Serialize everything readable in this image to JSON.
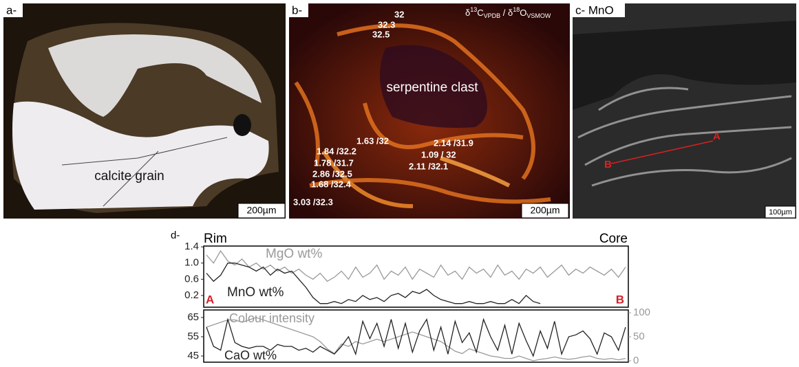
{
  "panels": {
    "a": {
      "label": "a-",
      "caption": "calcite grain",
      "scale": "200µm"
    },
    "b": {
      "label": "b-",
      "header": [
        "δ",
        "13",
        "C",
        "VPDB",
        " / δ",
        "18",
        "O",
        "VSMOW"
      ],
      "caption": "serpentine clast",
      "scale": "200µm",
      "points": [
        "32",
        "32.3",
        "32.5",
        "1.63 /32",
        "2.14 /31.9",
        "1.84 /32.2",
        "1.09 / 32",
        "1.78 /31.7",
        "2.11 /32.1",
        "2.86 /32.5",
        "1.68 /32.4",
        "3.03 /32.3"
      ]
    },
    "c": {
      "label": "c- MnO",
      "start": "A",
      "end": "B",
      "scale": "100µm"
    },
    "d": {
      "label": "d-"
    }
  },
  "chart_data": [
    {
      "type": "line",
      "annotations": [
        "Rim",
        "Core",
        "A",
        "B"
      ],
      "categories": [
        null,
        null,
        null,
        null,
        null,
        null,
        null,
        null,
        null,
        null,
        null,
        null,
        null,
        null,
        null,
        null,
        null,
        null,
        null,
        null,
        null,
        null,
        null,
        null,
        null,
        null,
        null,
        null,
        null,
        null,
        null,
        null,
        null,
        null,
        null,
        null,
        null,
        null,
        null,
        null,
        null,
        null,
        null,
        null,
        null,
        null,
        null,
        null,
        null,
        null,
        null,
        null,
        null,
        null,
        null,
        null,
        null,
        null,
        null,
        null
      ],
      "ylim": [
        -0.09,
        1.42
      ],
      "yticks": [
        0.2,
        0.6,
        {
          "value": 1,
          "label": "1.0"
        },
        1.4
      ],
      "series": [
        {
          "name": "MgO wt%",
          "color": "#999999",
          "values": [
            1.2,
            1.0,
            1.3,
            1.05,
            0.95,
            1.1,
            0.9,
            1.0,
            0.85,
            0.95,
            0.8,
            0.9,
            0.75,
            0.85,
            0.7,
            0.6,
            0.75,
            0.55,
            0.65,
            0.8,
            0.6,
            0.9,
            0.65,
            0.75,
            0.95,
            0.6,
            0.8,
            0.7,
            0.9,
            0.6,
            0.85,
            0.75,
            0.65,
            0.95,
            0.7,
            0.8,
            0.6,
            0.9,
            0.75,
            0.85,
            0.65,
            0.95,
            0.7,
            0.8,
            0.6,
            0.85,
            0.75,
            0.9,
            0.65,
            0.8,
            0.95,
            0.7,
            0.85,
            0.75,
            0.9,
            0.8,
            0.7,
            0.85,
            0.65,
            0.9
          ]
        },
        {
          "name": "MnO wt%",
          "color": "#222222",
          "values": [
            0.75,
            0.55,
            0.7,
            1.0,
            1.0,
            0.95,
            0.9,
            0.8,
            0.9,
            0.7,
            0.85,
            0.75,
            0.8,
            0.6,
            0.4,
            0.15,
            0.0,
            0.0,
            0.05,
            0.0,
            0.1,
            0.05,
            0.2,
            0.1,
            0.15,
            0.05,
            0.2,
            0.25,
            0.15,
            0.3,
            0.25,
            0.35,
            0.2,
            0.1,
            0.05,
            0.0,
            0.0,
            0.05,
            0.0,
            0.0,
            0.05,
            0.0,
            0.0,
            0.1,
            0.0,
            0.2,
            0.05,
            0.0,
            null,
            null,
            null,
            null,
            null,
            null,
            null,
            null,
            null,
            null,
            null,
            null
          ]
        }
      ]
    },
    {
      "type": "line",
      "categories": [
        null,
        null,
        null,
        null,
        null,
        null,
        null,
        null,
        null,
        null,
        null,
        null,
        null,
        null,
        null,
        null,
        null,
        null,
        null,
        null,
        null,
        null,
        null,
        null,
        null,
        null,
        null,
        null,
        null,
        null,
        null,
        null,
        null,
        null,
        null,
        null,
        null,
        null,
        null,
        null,
        null,
        null,
        null,
        null,
        null,
        null,
        null,
        null,
        null,
        null,
        null,
        null,
        null,
        null,
        null,
        null,
        null,
        null,
        null,
        null
      ],
      "ylim": [
        41.8,
        68.9
      ],
      "yticks": [
        45,
        55,
        65
      ],
      "y2lim": [
        -2.9,
        105.7
      ],
      "y2ticks": [
        0,
        50,
        100
      ],
      "series": [
        {
          "name": "Colour intensity",
          "color": "#999999",
          "axis": "y2",
          "values": [
            70,
            75,
            80,
            85,
            85,
            80,
            85,
            90,
            85,
            80,
            75,
            70,
            65,
            60,
            55,
            50,
            40,
            25,
            15,
            35,
            30,
            40,
            35,
            40,
            45,
            40,
            45,
            50,
            55,
            60,
            55,
            50,
            45,
            40,
            30,
            20,
            15,
            25,
            20,
            15,
            10,
            8,
            5,
            5,
            10,
            5,
            0,
            3,
            5,
            8,
            5,
            3,
            5,
            8,
            10,
            5,
            3,
            5,
            2,
            5
          ]
        },
        {
          "name": "CaO wt%",
          "color": "#222222",
          "values": [
            60,
            50,
            48,
            64,
            52,
            50,
            49,
            50,
            50,
            48,
            51,
            50,
            50,
            48,
            49,
            47,
            50,
            48,
            46,
            50,
            55,
            46,
            63,
            54,
            62,
            50,
            64,
            49,
            62,
            47,
            58,
            64,
            48,
            60,
            46,
            63,
            52,
            57,
            47,
            64,
            55,
            48,
            61,
            46,
            62,
            53,
            45,
            58,
            49,
            63,
            46,
            55,
            56,
            58,
            54,
            46,
            57,
            55,
            48,
            60
          ]
        }
      ]
    }
  ]
}
